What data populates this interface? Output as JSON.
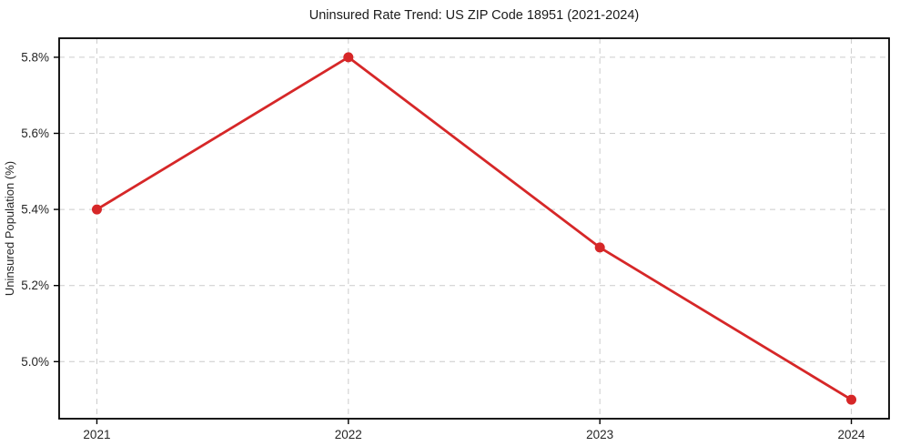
{
  "figure": {
    "title": "Uninsured Rate Trend: US ZIP Code 18951 (2021-2024)"
  },
  "chart_data": {
    "type": "line",
    "title": "Uninsured Rate Trend: US ZIP Code 18951 (2021-2024)",
    "xlabel": "",
    "ylabel": "Uninsured Population (%)",
    "x": [
      2021,
      2022,
      2023,
      2024
    ],
    "values": [
      5.4,
      5.8,
      5.3,
      4.9
    ],
    "xticks": [
      {
        "value": 2021,
        "label": "2021"
      },
      {
        "value": 2022,
        "label": "2022"
      },
      {
        "value": 2023,
        "label": "2023"
      },
      {
        "value": 2024,
        "label": "2024"
      }
    ],
    "yticks": [
      {
        "value": 5.0,
        "label": "5.0%"
      },
      {
        "value": 5.2,
        "label": "5.2%"
      },
      {
        "value": 5.4,
        "label": "5.4%"
      },
      {
        "value": 5.6,
        "label": "5.6%"
      },
      {
        "value": 5.8,
        "label": "5.8%"
      }
    ],
    "xlim": [
      2020.85,
      2024.15
    ],
    "ylim": [
      4.85,
      5.85
    ],
    "grid": true,
    "legend": false,
    "colors": {
      "line": "#d62728",
      "marker": "#d62728",
      "grid": "#cccccc",
      "spine": "#000000",
      "background": "#ffffff"
    }
  }
}
